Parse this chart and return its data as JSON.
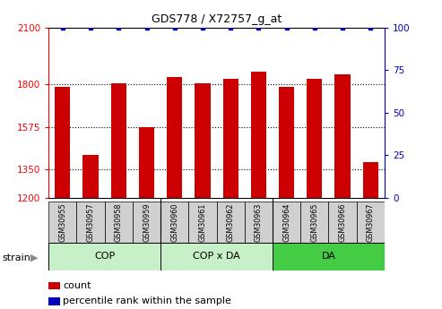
{
  "title": "GDS778 / X72757_g_at",
  "samples": [
    "GSM30955",
    "GSM30957",
    "GSM30958",
    "GSM30959",
    "GSM30960",
    "GSM30961",
    "GSM30962",
    "GSM30963",
    "GSM30964",
    "GSM30965",
    "GSM30966",
    "GSM30967"
  ],
  "counts": [
    1785,
    1425,
    1805,
    1575,
    1840,
    1805,
    1830,
    1870,
    1785,
    1830,
    1855,
    1390
  ],
  "percentiles": [
    100,
    100,
    100,
    100,
    100,
    100,
    100,
    100,
    100,
    100,
    100,
    100
  ],
  "group_defs": [
    {
      "label": "COP",
      "start": 0,
      "end": 3,
      "color": "#c8f0c8"
    },
    {
      "label": "COP x DA",
      "start": 4,
      "end": 7,
      "color": "#c8f0c8"
    },
    {
      "label": "DA",
      "start": 8,
      "end": 11,
      "color": "#44cc44"
    }
  ],
  "ylim_left": [
    1200,
    2100
  ],
  "ylim_right": [
    0,
    100
  ],
  "yticks_left": [
    1200,
    1350,
    1575,
    1800,
    2100
  ],
  "yticks_right": [
    0,
    25,
    50,
    75,
    100
  ],
  "bar_color": "#cc0000",
  "percentile_color": "#0000bb",
  "bar_width": 0.55,
  "tick_bg_color": "#d0d0d0",
  "white": "#ffffff"
}
